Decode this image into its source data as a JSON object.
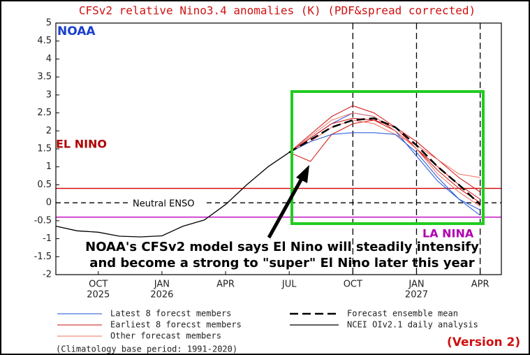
{
  "chart_data": {
    "type": "line",
    "title": "CFSv2 relative Nino3.4 anomalies (K) (PDF&spread corrected)",
    "x": [
      "2025-08",
      "2025-09",
      "2025-10",
      "2025-11",
      "2025-12",
      "2026-01",
      "2026-02",
      "2026-03",
      "2026-04",
      "2026-05",
      "2026-06",
      "2026-07",
      "2026-08",
      "2026-09",
      "2026-10",
      "2026-11",
      "2026-12",
      "2027-01",
      "2027-02",
      "2027-03",
      "2027-04"
    ],
    "xlim": [
      "2025-08",
      "2027-05"
    ],
    "xticks": [
      {
        "value": "2025-10",
        "label": "OCT"
      },
      {
        "value": "2026-01",
        "label": "JAN"
      },
      {
        "value": "2026-04",
        "label": "APR"
      },
      {
        "value": "2026-07",
        "label": "JUL"
      },
      {
        "value": "2026-10",
        "label": "OCT"
      },
      {
        "value": "2027-01",
        "label": "JAN"
      },
      {
        "value": "2027-04",
        "label": "APR"
      }
    ],
    "xtick_years": [
      {
        "value": "2025-10",
        "label": "2025"
      },
      {
        "value": "2026-01",
        "label": "2026"
      },
      {
        "value": "2027-01",
        "label": "2027"
      }
    ],
    "ylim": [
      -2,
      5
    ],
    "yticks": [
      5,
      4.5,
      4,
      3.5,
      3,
      2.5,
      2,
      1.5,
      1,
      0.5,
      0,
      -0.5,
      -1,
      -1.5,
      -2
    ],
    "vlines": [
      "2026-10",
      "2027-01",
      "2027-04"
    ],
    "hlines": [
      {
        "value": 0.4,
        "color": "#d00000"
      },
      {
        "value": -0.4,
        "color": "#c000c0"
      },
      {
        "value": 0,
        "color": "#000000",
        "dash": true
      }
    ],
    "series": [
      {
        "name": "Latest 8 forecst members",
        "color": "#1a4fd6",
        "width": 1,
        "values": [
          null,
          null,
          null,
          null,
          null,
          null,
          null,
          null,
          null,
          null,
          null,
          1.4,
          1.7,
          1.9,
          1.95,
          1.95,
          1.9,
          1.4,
          0.7,
          0.1,
          -0.35
        ]
      },
      {
        "name": "Earliest 8 forecst members",
        "color": "#d01010",
        "width": 1,
        "values": [
          null,
          null,
          null,
          null,
          null,
          null,
          null,
          null,
          null,
          null,
          null,
          1.4,
          1.9,
          2.4,
          2.7,
          2.5,
          2.1,
          1.5,
          0.9,
          0.4,
          0.0
        ]
      },
      {
        "name": "Other forecast members",
        "color": "#f07060",
        "width": 1,
        "values": [
          null,
          null,
          null,
          null,
          null,
          null,
          null,
          null,
          null,
          null,
          null,
          1.4,
          1.85,
          2.3,
          2.5,
          2.4,
          2.0,
          1.5,
          0.8,
          0.3,
          -0.1
        ]
      },
      {
        "name": "Forecast ensemble mean",
        "color": "#000000",
        "width": 2.5,
        "dash": true,
        "values": [
          null,
          null,
          null,
          null,
          null,
          null,
          null,
          null,
          null,
          null,
          null,
          1.4,
          1.75,
          2.1,
          2.3,
          2.35,
          2.1,
          1.6,
          1.0,
          0.5,
          -0.05
        ]
      },
      {
        "name": "NCEI OIv2.1 daily analysis",
        "color": "#000000",
        "width": 1.3,
        "values": [
          -0.65,
          -0.78,
          -0.82,
          -0.93,
          -0.95,
          -0.92,
          -0.65,
          -0.48,
          -0.05,
          0.5,
          1.0,
          1.4,
          null,
          null,
          null,
          null,
          null,
          null,
          null,
          null,
          null
        ]
      },
      {
        "color": "#1a4fd6",
        "width": 1,
        "values": [
          null,
          null,
          null,
          null,
          null,
          null,
          null,
          null,
          null,
          null,
          null,
          1.4,
          1.8,
          2.2,
          2.5,
          2.4,
          2.0,
          1.3,
          0.6,
          0.1,
          -0.2
        ]
      },
      {
        "color": "#d01010",
        "width": 1,
        "values": [
          null,
          null,
          null,
          null,
          null,
          null,
          null,
          null,
          null,
          null,
          null,
          1.4,
          1.15,
          1.9,
          2.2,
          2.3,
          2.0,
          1.5,
          1.0,
          0.5,
          0.1
        ]
      },
      {
        "color": "#d01010",
        "width": 1,
        "values": [
          null,
          null,
          null,
          null,
          null,
          null,
          null,
          null,
          null,
          null,
          null,
          1.4,
          1.8,
          2.2,
          2.35,
          2.3,
          2.1,
          1.7,
          1.2,
          0.7,
          0.3
        ]
      },
      {
        "color": "#f07060",
        "width": 1,
        "values": [
          null,
          null,
          null,
          null,
          null,
          null,
          null,
          null,
          null,
          null,
          null,
          1.4,
          1.7,
          2.1,
          2.3,
          2.2,
          1.9,
          1.6,
          1.2,
          0.8,
          0.7
        ]
      }
    ],
    "labels": {
      "noaa": "NOAA",
      "el_nino": "EL NINO",
      "la_nina": "LA NINA",
      "neutral": "Neutral ENSO"
    },
    "annotation": [
      "NOAA's CFSv2 model says El Nino will steadily intensify",
      "and become a strong to \"super\" El Nino later this year"
    ],
    "footnote": "(Climatology base period: 1991-2020)",
    "version": "(Version 2)"
  }
}
